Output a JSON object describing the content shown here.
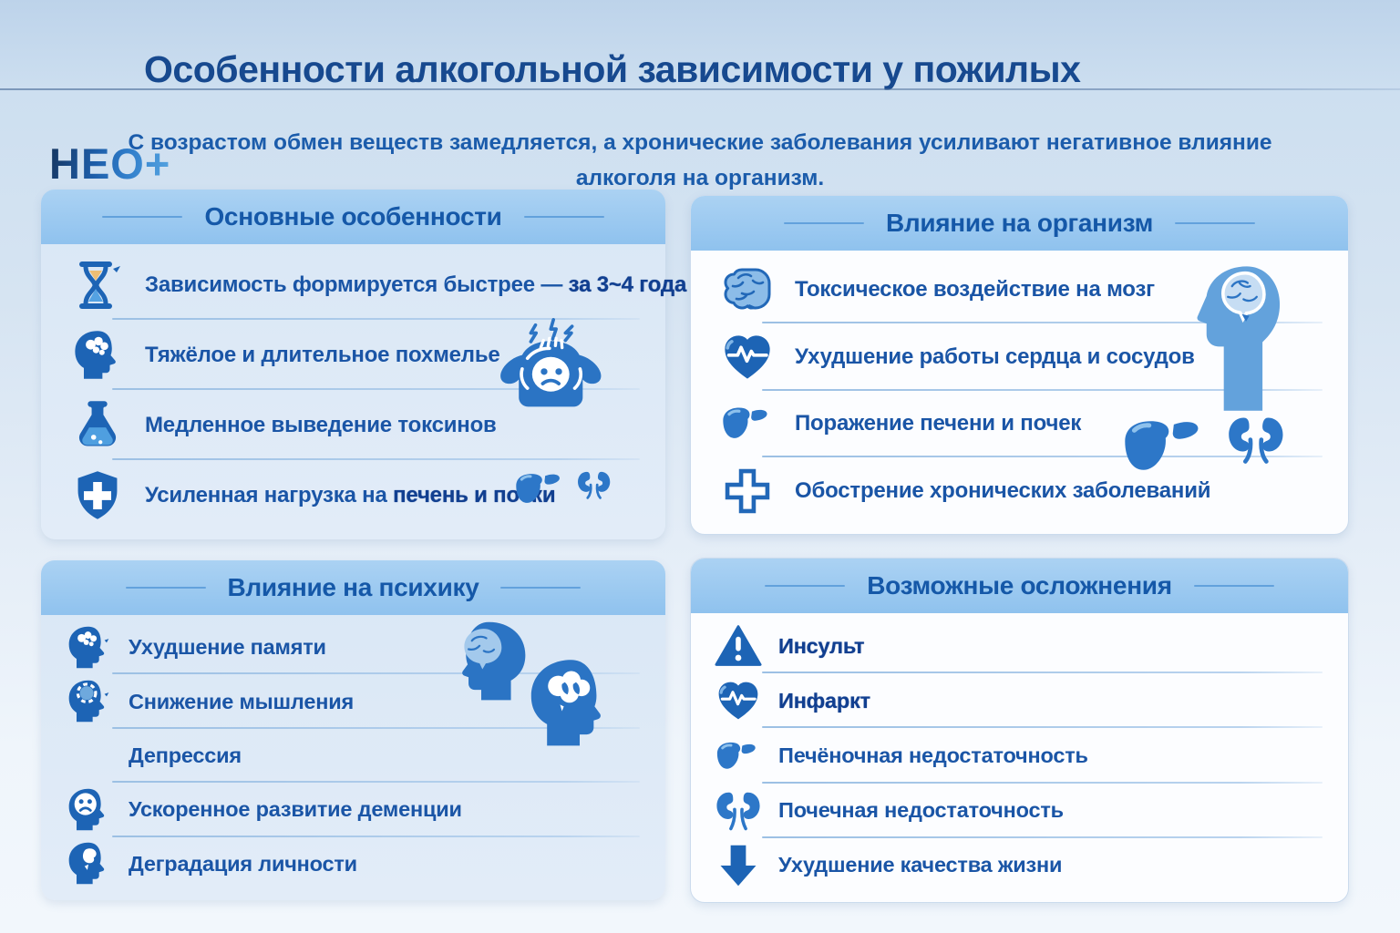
{
  "page": {
    "logo": "НЕО+",
    "title": "Особенности алкогольной зависимости у пожилых",
    "subtitle": "С возрастом обмен веществ замедляется, а хронические заболевания усиливают негативное влияние алкоголя на организм."
  },
  "colors": {
    "accent_text": "#1a55a6",
    "title_text": "#17498f",
    "header_band": "#9bc9f0",
    "icon_blue": "#1d64b5",
    "panel_blue_bg": "#dde9f6",
    "panel_white_bg": "#fcfdff",
    "hourglass_sand": "#edbe74"
  },
  "panels": [
    {
      "id": "main-features",
      "title": "Основные особенности",
      "items": [
        {
          "icon": "hourglass-icon",
          "text": "Зависимость формируется быстрее — ",
          "bold": "за 3~4 года"
        },
        {
          "icon": "hangover-head-icon",
          "text": "Тяжёлое и длительное похмелье"
        },
        {
          "icon": "flask-icon",
          "text": "Медленное выведение токсинов"
        },
        {
          "icon": "shield-cross-icon",
          "text": "Усиленная нагрузка на ",
          "bold": "печень и почки"
        }
      ],
      "illustrations": [
        "headache-person-illustration",
        "liver-kidneys-illustration"
      ]
    },
    {
      "id": "body-impact",
      "title": "Влияние на организм",
      "items": [
        {
          "icon": "brain-icon",
          "text": "Токсическое воздействие на мозг"
        },
        {
          "icon": "heart-ecg-icon",
          "text": "Ухудшение работы сердца и сосудов"
        },
        {
          "icon": "liver-icon",
          "text": "Поражение печени и почек"
        },
        {
          "icon": "medical-cross-icon",
          "text": "Обострение хронических заболеваний"
        }
      ],
      "illustrations": [
        "head-brain-illustration",
        "liver-kidneys-illustration"
      ]
    },
    {
      "id": "psyche-impact",
      "title": "Влияние на психику",
      "items": [
        {
          "icon": "memory-head-icon",
          "text": "Ухудшение памяти"
        },
        {
          "icon": "thinking-head-icon",
          "text": "Снижение мышления"
        },
        {
          "icon": null,
          "text": "Депрессия"
        },
        {
          "icon": "sad-face-head-icon",
          "text": "Ускоренное развитие деменции"
        },
        {
          "icon": "degradation-head-icon",
          "text": "Деградация личности"
        }
      ],
      "illustrations": [
        "two-heads-illustration"
      ]
    },
    {
      "id": "complications",
      "title": "Возможные осложнения",
      "items": [
        {
          "icon": "warning-triangle-icon",
          "text": "",
          "bold": "Инсульт"
        },
        {
          "icon": "heart-ecg-icon",
          "text": "",
          "bold": "Инфаркт"
        },
        {
          "icon": "liver-icon",
          "text": "Печёночная недостаточность"
        },
        {
          "icon": "kidneys-icon",
          "text": "Почечная недостаточность"
        },
        {
          "icon": "arrow-down-icon",
          "text": "Ухудшение качества жизни"
        }
      ],
      "illustrations": []
    }
  ]
}
